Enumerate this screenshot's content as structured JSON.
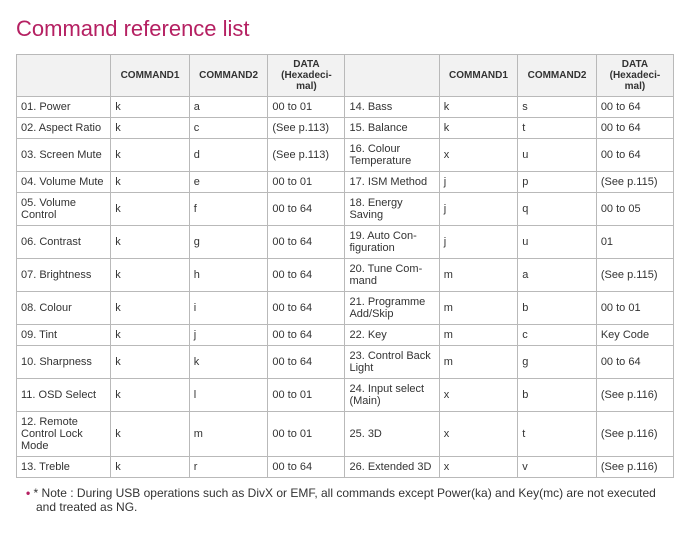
{
  "title": "Command reference list",
  "headers": {
    "cmd1": "COMMAND1",
    "cmd2": "COMMAND2",
    "data": "DATA (Hexadeci-mal)"
  },
  "colors": {
    "heading": "#b52062",
    "border": "#b9b9b9",
    "header_bg": "#f2f2f2",
    "text": "#333333",
    "background": "#ffffff"
  },
  "left": [
    {
      "name": "01. Power",
      "c1": "k",
      "c2": "a",
      "d": "00 to 01"
    },
    {
      "name": "02. Aspect Ratio",
      "c1": "k",
      "c2": "c",
      "d": "(See p.113)"
    },
    {
      "name": "03. Screen Mute",
      "c1": "k",
      "c2": "d",
      "d": "(See p.113)"
    },
    {
      "name": "04. Volume Mute",
      "c1": "k",
      "c2": "e",
      "d": "00 to 01"
    },
    {
      "name": "05. Volume Control",
      "c1": "k",
      "c2": "f",
      "d": "00 to 64"
    },
    {
      "name": "06. Contrast",
      "c1": "k",
      "c2": "g",
      "d": "00 to 64"
    },
    {
      "name": "07. Brightness",
      "c1": "k",
      "c2": "h",
      "d": "00 to 64"
    },
    {
      "name": "08. Colour",
      "c1": "k",
      "c2": "i",
      "d": "00 to 64"
    },
    {
      "name": "09. Tint",
      "c1": "k",
      "c2": "j",
      "d": "00 to 64"
    },
    {
      "name": "10. Sharpness",
      "c1": "k",
      "c2": "k",
      "d": "00 to 64"
    },
    {
      "name": "11. OSD Select",
      "c1": "k",
      "c2": "l",
      "d": "00 to 01"
    },
    {
      "name": "12. Remote Control Lock Mode",
      "c1": "k",
      "c2": "m",
      "d": "00 to 01"
    },
    {
      "name": "13. Treble",
      "c1": "k",
      "c2": "r",
      "d": "00 to 64"
    }
  ],
  "right": [
    {
      "name": "14. Bass",
      "c1": "k",
      "c2": "s",
      "d": "00 to 64"
    },
    {
      "name": "15. Balance",
      "c1": "k",
      "c2": "t",
      "d": "00 to 64"
    },
    {
      "name": "16. Colour Temperature",
      "c1": "x",
      "c2": "u",
      "d": "00 to 64"
    },
    {
      "name": "17. ISM Method",
      "c1": "j",
      "c2": "p",
      "d": "(See p.115)"
    },
    {
      "name": "18. Energy Saving",
      "c1": "j",
      "c2": "q",
      "d": "00 to 05"
    },
    {
      "name": "19. Auto Con-figuration",
      "c1": "j",
      "c2": "u",
      "d": "01"
    },
    {
      "name": "20. Tune Com-mand",
      "c1": "m",
      "c2": "a",
      "d": "(See p.115)"
    },
    {
      "name": "21. Programme Add/Skip",
      "c1": "m",
      "c2": "b",
      "d": "00 to 01"
    },
    {
      "name": "22. Key",
      "c1": "m",
      "c2": "c",
      "d": "Key Code"
    },
    {
      "name": "23. Control Back Light",
      "c1": "m",
      "c2": "g",
      "d": "00 to 64"
    },
    {
      "name": "24. Input select (Main)",
      "c1": "x",
      "c2": "b",
      "d": "(See p.116)"
    },
    {
      "name": "25. 3D",
      "c1": "x",
      "c2": "t",
      "d": "(See p.116)"
    },
    {
      "name": "26. Extended 3D",
      "c1": "x",
      "c2": "v",
      "d": "(See p.116)"
    }
  ],
  "note": "* Note : During USB operations such as DivX or EMF, all commands except Power(ka) and Key(mc) are not executed and treated as NG."
}
